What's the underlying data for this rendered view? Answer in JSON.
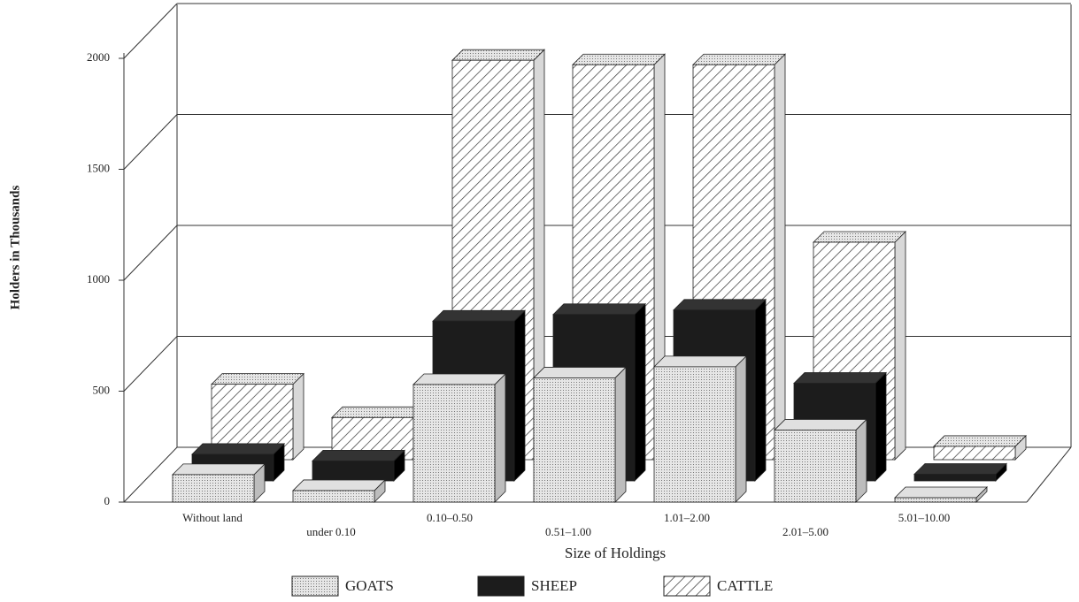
{
  "chart_data": {
    "type": "bar3d",
    "x_label": "Size of Holdings",
    "y_label": "Holders in Thousands",
    "categories": [
      "Without land",
      "under 0.10",
      "0.10–0.50",
      "0.51–1.00",
      "1.01–2.00",
      "2.01–5.00",
      "5.01–10.00"
    ],
    "series": [
      {
        "name": "GOATS",
        "color": "#d0d0d0",
        "pattern": "dots",
        "values": [
          124,
          52,
          530,
          560,
          610,
          325,
          20
        ]
      },
      {
        "name": "SHEEP",
        "color": "#1c1c1c",
        "pattern": "solid",
        "values": [
          120,
          90,
          720,
          750,
          770,
          440,
          30
        ]
      },
      {
        "name": "CATTLE",
        "color": "#ffffff",
        "pattern": "hatch",
        "values": [
          340,
          190,
          1800,
          1780,
          1780,
          980,
          60
        ]
      }
    ],
    "ylim": [
      0,
      2000
    ],
    "yticks": [
      0,
      500,
      1000,
      1500,
      2000
    ],
    "grid": true
  }
}
